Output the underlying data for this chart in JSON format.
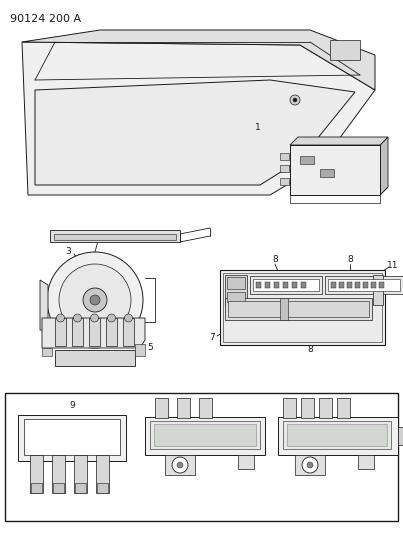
{
  "title": "90124 200 A",
  "bg_color": "#ffffff",
  "lc": "#1a1a1a",
  "gray1": "#d8d8d8",
  "gray2": "#b8b8b8",
  "gray3": "#e8e8e8",
  "title_fontsize": 8,
  "label_fontsize": 6.5,
  "fig_width": 4.03,
  "fig_height": 5.33,
  "dpi": 100
}
